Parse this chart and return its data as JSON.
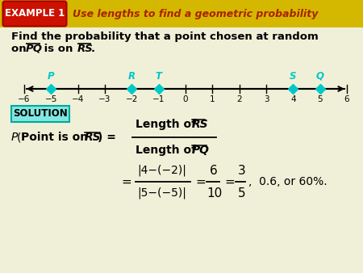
{
  "bg_color": "#f0f0d8",
  "header_bg": "#c8a000",
  "header_text": "EXAMPLE 1",
  "header_subtext": "Use lengths to find a geometric probability",
  "problem_line1": "Find the probability that a point chosen at random",
  "points": {
    "P": -5,
    "R": -2,
    "T": -1,
    "S": 4,
    "Q": 5
  },
  "point_color": "#00c8c8",
  "nl_min": -6,
  "nl_max": 6,
  "solution_bg": "#80e8e0",
  "solution_border": "#00a8a0"
}
